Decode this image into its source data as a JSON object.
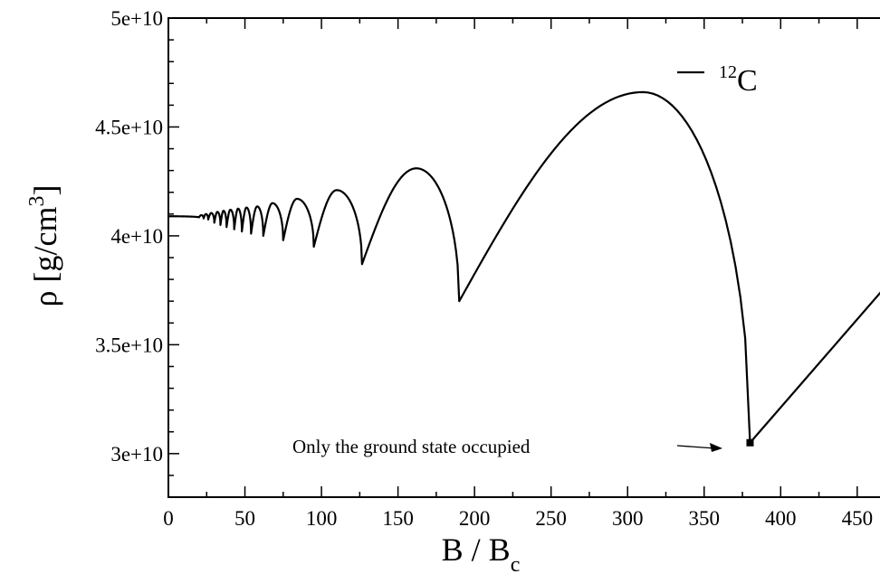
{
  "chart_data": {
    "type": "line",
    "xlabel": {
      "main": "B / B",
      "sub": "c"
    },
    "ylabel": {
      "main": "ρ [g/cm",
      "sup": "3",
      "end": "]"
    },
    "xlim": [
      0,
      485
    ],
    "ylim": [
      28000000000,
      50000000000
    ],
    "x_ticks": [
      0,
      50,
      100,
      150,
      200,
      250,
      300,
      350,
      400,
      450
    ],
    "x_tick_labels": [
      "0",
      "50",
      "100",
      "150",
      "200",
      "250",
      "300",
      "350",
      "400",
      "450"
    ],
    "y_ticks": [
      30000000000,
      35000000000,
      40000000000,
      45000000000,
      50000000000
    ],
    "y_tick_labels": [
      "3e+10",
      "3.5e+10",
      "4e+10",
      "4.5e+10",
      "5e+10"
    ],
    "grid": false,
    "legend": {
      "position": "top-right",
      "sup": "12",
      "label": "C"
    },
    "series": [
      {
        "name": "12C",
        "color": "#000000",
        "cusps": [
          20,
          23,
          26,
          30,
          34,
          38,
          43,
          48,
          54,
          62,
          75,
          95,
          126.5,
          190,
          380
        ],
        "peaks": [
          [
            0,
            40.9
          ],
          [
            21.5,
            40.95
          ],
          [
            24.5,
            41.0
          ],
          [
            28,
            41.05
          ],
          [
            32,
            41.1
          ],
          [
            36,
            41.15
          ],
          [
            40.5,
            41.2
          ],
          [
            45.5,
            41.25
          ],
          [
            51,
            41.3
          ],
          [
            58,
            41.35
          ],
          [
            68,
            41.5
          ],
          [
            84,
            41.7
          ],
          [
            110,
            42.1
          ],
          [
            162,
            43.1
          ],
          [
            310,
            46.6
          ]
        ],
        "tail": [
          [
            380,
            30.5
          ],
          [
            485,
            39.0
          ]
        ]
      }
    ],
    "annotation": {
      "text": "Only the ground state occupied",
      "target": [
        380,
        30500000000
      ]
    }
  }
}
